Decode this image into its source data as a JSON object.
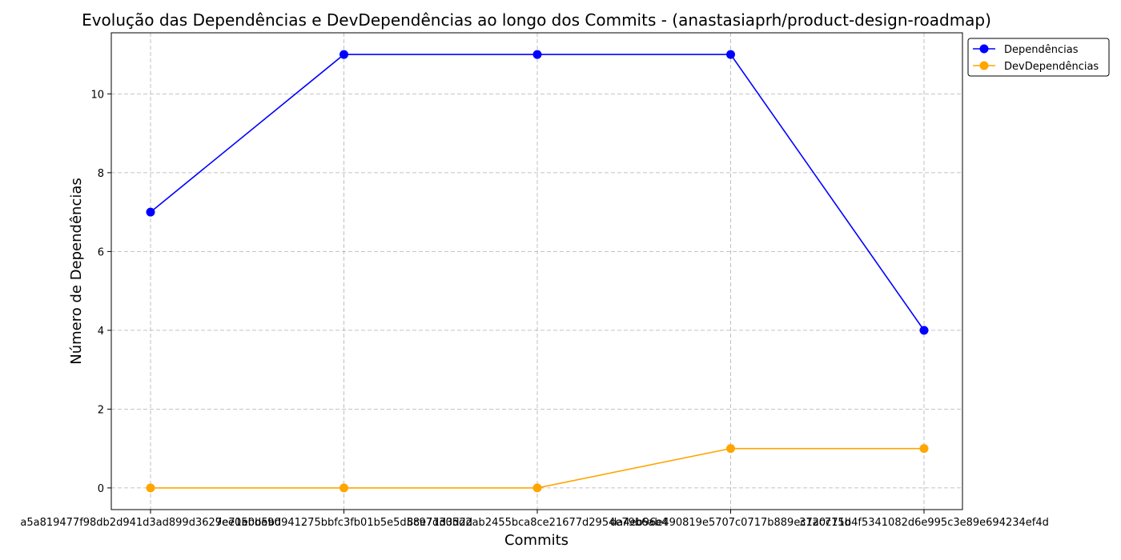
{
  "chart_data": {
    "type": "line",
    "title": "Evolução das Dependências e DevDependências ao longo dos Commits - (anastasiaprh/product-design-roadmap)",
    "xlabel": "Commits",
    "ylabel": "Número de Dependências",
    "categories": [
      "a5a819477f98db2d941d3ad899d3629ee05bde90",
      "7e71e0b5bd941275bbfc3fb01b5e5d58e71d3d2d",
      "8c97d305d2ab2455bca8ce21677d2954e79b6ab4",
      "da4eb96e490819e5707c0717b889ec7ac715d",
      "3120c71b4f5341082d6e995c3e89e694234ef4d"
    ],
    "ylim": [
      -0.55,
      11.55
    ],
    "yticks": [
      0,
      2,
      4,
      6,
      8,
      10
    ],
    "grid": true,
    "legend_position": "upper-right-outside",
    "series": [
      {
        "name": "Dependências",
        "values": [
          7,
          11,
          11,
          11,
          4
        ],
        "color": "#0000ff"
      },
      {
        "name": "DevDependências",
        "values": [
          0,
          0,
          0,
          1,
          1
        ],
        "color": "#ffa500"
      }
    ]
  }
}
